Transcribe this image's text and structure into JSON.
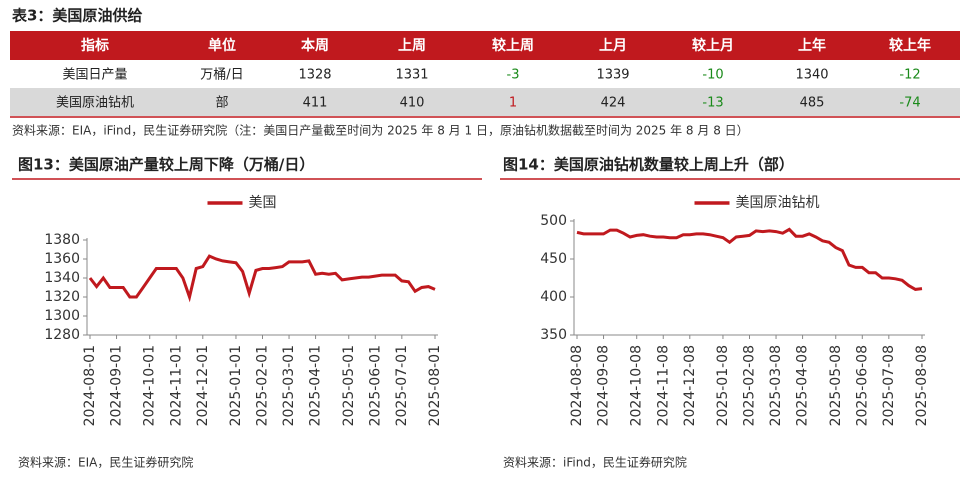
{
  "table": {
    "title": "表3：美国原油供给",
    "header": [
      "指标",
      "单位",
      "本周",
      "上周",
      "较上周",
      "上月",
      "较上月",
      "上年",
      "较上年"
    ],
    "rows": [
      [
        "美国日产量",
        "万桶/日",
        "1328",
        "1331",
        "-3",
        "1339",
        "-10",
        "1340",
        "-12"
      ],
      [
        "美国原油钻机",
        "部",
        "411",
        "410",
        "1",
        "424",
        "-13",
        "485",
        "-74"
      ]
    ],
    "note": "资料来源：EIA，iFind，民生证券研究院（注：美国日产量截至时间为 2025 年 8 月 1 日，原油钻机数据截至时间为 2025 年 8 月 8 日）"
  },
  "chart_data": [
    {
      "type": "line",
      "title": "图13：美国原油产量较上周下降（万桶/日）",
      "source": "资料来源：EIA，民生证券研究院",
      "categories": [
        "2024-08-01",
        null,
        null,
        null,
        "2024-09-01",
        null,
        null,
        null,
        null,
        "2024-10-01",
        null,
        null,
        null,
        "2024-11-01",
        null,
        null,
        null,
        "2024-12-01",
        null,
        null,
        null,
        null,
        "2025-01-01",
        null,
        null,
        null,
        "2025-02-01",
        null,
        null,
        null,
        "2025-03-01",
        null,
        null,
        null,
        "2025-04-01",
        null,
        null,
        null,
        null,
        "2025-05-01",
        null,
        null,
        null,
        "2025-06-01",
        null,
        null,
        null,
        "2025-07-01",
        null,
        null,
        null,
        null,
        "2025-08-01"
      ],
      "series": [
        {
          "name": "美国",
          "color": "#c0191e",
          "values": [
            1340,
            1331,
            1340,
            1330,
            1330,
            1330,
            1320,
            1320,
            1330,
            1340,
            1350,
            1350,
            1350,
            1350,
            1340,
            1320,
            1350,
            1352,
            1363,
            1360,
            1358,
            1357,
            1356,
            1347,
            1324,
            1348,
            1350,
            1350,
            1351,
            1352,
            1357,
            1357,
            1357,
            1358,
            1344,
            1345,
            1344,
            1345,
            1338,
            1339,
            1340,
            1341,
            1341,
            1342,
            1343,
            1343,
            1343,
            1337,
            1336,
            1326,
            1330,
            1331,
            1328
          ]
        }
      ],
      "ylim": [
        1280,
        1380
      ],
      "yticks": [
        1280,
        1300,
        1320,
        1340,
        1360,
        1380
      ],
      "legend": "top"
    },
    {
      "type": "line",
      "title": "图14：美国原油钻机数量较上周上升（部）",
      "source": "资料来源：iFind，民生证券研究院",
      "categories": [
        "2024-08-08",
        null,
        null,
        null,
        "2024-09-08",
        null,
        null,
        null,
        null,
        "2024-10-08",
        null,
        null,
        null,
        "2024-11-08",
        null,
        null,
        null,
        "2024-12-08",
        null,
        null,
        null,
        null,
        "2025-01-08",
        null,
        null,
        null,
        "2025-02-08",
        null,
        null,
        null,
        "2025-03-08",
        null,
        null,
        null,
        "2025-04-08",
        null,
        null,
        null,
        null,
        "2025-05-08",
        null,
        null,
        null,
        "2025-06-08",
        null,
        null,
        null,
        "2025-07-08",
        null,
        null,
        null,
        null,
        "2025-08-08"
      ],
      "series": [
        {
          "name": "美国原油钻机",
          "color": "#c0191e",
          "values": [
            485,
            483,
            483,
            483,
            483,
            488,
            488,
            484,
            479,
            481,
            482,
            480,
            479,
            479,
            478,
            478,
            482,
            482,
            483,
            483,
            482,
            480,
            478,
            472,
            479,
            480,
            481,
            487,
            486,
            487,
            486,
            484,
            489,
            480,
            480,
            483,
            479,
            474,
            472,
            465,
            461,
            442,
            439,
            439,
            432,
            432,
            425,
            425,
            424,
            422,
            415,
            410,
            411
          ]
        }
      ],
      "ylim": [
        350,
        500
      ],
      "yticks": [
        350,
        400,
        450,
        500
      ],
      "legend": "top"
    }
  ]
}
